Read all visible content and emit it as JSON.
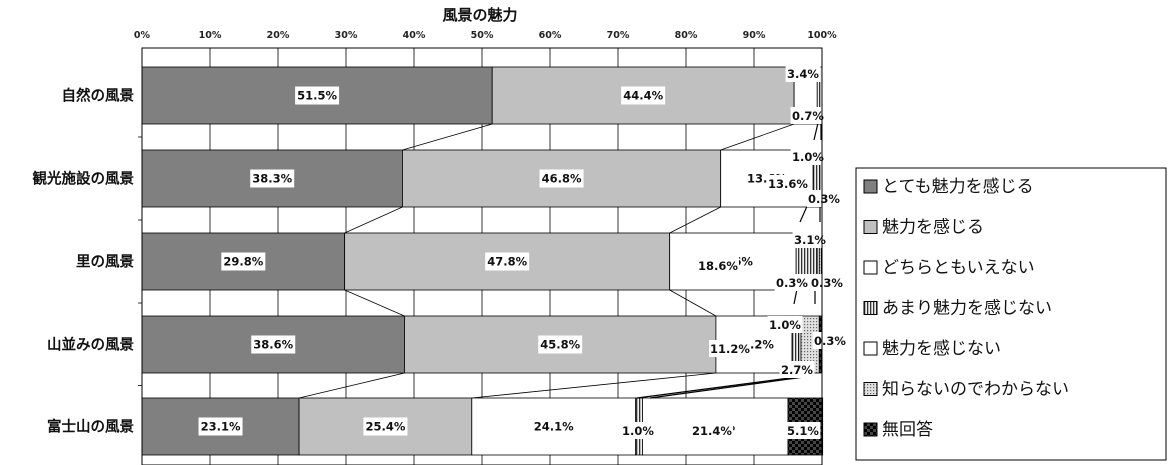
{
  "chart_data": {
    "type": "bar",
    "orientation": "horizontal",
    "stacked": true,
    "title": "風景の魅力",
    "xlim": [
      0,
      100
    ],
    "xticks": [
      "0%",
      "10%",
      "20%",
      "30%",
      "40%",
      "50%",
      "60%",
      "70%",
      "80%",
      "90%",
      "100%"
    ],
    "grid": true,
    "legend_position": "right",
    "categories": [
      "自然の風景",
      "観光施設の風景",
      "里の風景",
      "山並みの風景",
      "富士山の風景"
    ],
    "series": [
      {
        "name": "とても魅力を感じる",
        "color": "#808080",
        "values": [
          51.5,
          38.3,
          29.8,
          38.6,
          23.1
        ],
        "labels": [
          "51.5%",
          "38.3%",
          "29.8%",
          "38.6%",
          "23.1%"
        ]
      },
      {
        "name": "魅力を感じる",
        "color": "#c0c0c0",
        "values": [
          44.4,
          46.8,
          47.8,
          45.8,
          25.4
        ],
        "labels": [
          "44.4%",
          "46.8%",
          "47.8%",
          "45.8%",
          "25.4%"
        ]
      },
      {
        "name": "どちらともいえない",
        "color": "#ffffff",
        "values": [
          3.4,
          13.6,
          18.6,
          11.2,
          24.1
        ],
        "labels": [
          "3.4%",
          "13.6%",
          "18.6%",
          "11.2%",
          "24.1%"
        ]
      },
      {
        "name": "あまり魅力を感じない",
        "color": "#e6e6e6",
        "pattern": "vertical",
        "values": [
          0.7,
          1.0,
          3.1,
          1.0,
          1.0
        ],
        "labels": [
          "0.7%",
          "1.0%",
          "3.1%",
          "1.0%",
          "1.0%"
        ]
      },
      {
        "name": "魅力を感じない",
        "color": "#ffffff",
        "values": [
          0.0,
          0.3,
          0.3,
          0.3,
          21.4
        ],
        "labels": [
          "",
          "0.3%",
          "0.3%",
          "0.3%",
          "21.4%"
        ]
      },
      {
        "name": "知らないのでわからない",
        "color": "#d0d0d0",
        "pattern": "dots",
        "values": [
          0.0,
          0.0,
          0.3,
          2.7,
          0.0
        ],
        "labels": [
          "",
          "",
          "0.3%",
          "2.7%",
          ""
        ]
      },
      {
        "name": "無回答",
        "color": "#111111",
        "pattern": "checker",
        "values": [
          0.0,
          0.0,
          0.0,
          0.3,
          5.1
        ],
        "labels": [
          "",
          "",
          "",
          "0.3%",
          "5.1%"
        ]
      }
    ]
  }
}
